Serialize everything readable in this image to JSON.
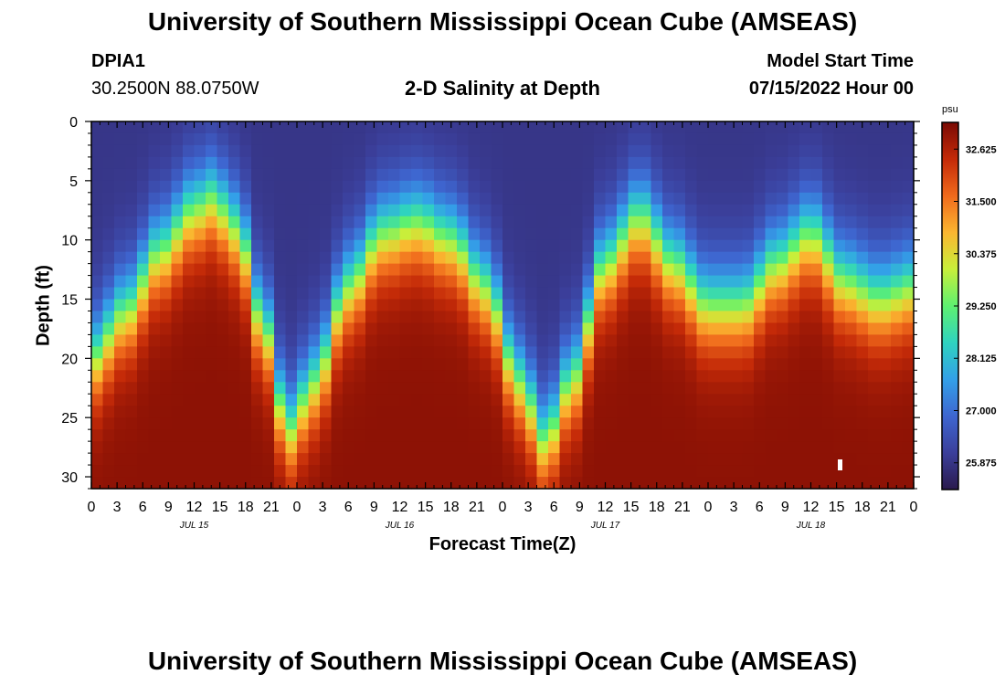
{
  "page": {
    "title": "University of Southern Mississippi Ocean Cube (AMSEAS)",
    "title_repeat": "University of Southern Mississippi Ocean Cube (AMSEAS)",
    "station": "DPIA1",
    "coords": "30.2500N  88.0750W",
    "subtitle": "2-D Salinity at Depth",
    "model_start_label": "Model Start Time",
    "model_start_value": "07/15/2022 Hour 00"
  },
  "colors": {
    "scale": [
      "#2a1a4d",
      "#3b3f9b",
      "#3e66d0",
      "#33a0e8",
      "#2fd3c0",
      "#5ef070",
      "#c8ef3a",
      "#fbb630",
      "#f06a1c",
      "#c42a08",
      "#7a0a04"
    ]
  },
  "chart_data": {
    "type": "heatmap",
    "title": "2-D Salinity at Depth",
    "xlabel": "Forecast Time(Z)",
    "ylabel": "Depth (ft)",
    "x_range_hours": [
      0,
      96
    ],
    "y_range_ft": [
      0,
      31
    ],
    "xticks": [
      "0",
      "3",
      "6",
      "9",
      "12",
      "15",
      "18",
      "21",
      "0",
      "3",
      "6",
      "9",
      "12",
      "15",
      "18",
      "21",
      "0",
      "3",
      "6",
      "9",
      "12",
      "15",
      "18",
      "21",
      "0",
      "3",
      "6",
      "9",
      "12",
      "15",
      "18",
      "21",
      "0"
    ],
    "yticks": [
      0,
      5,
      10,
      15,
      20,
      25,
      30
    ],
    "day_labels": [
      {
        "label": "JUL 15",
        "hour": 12
      },
      {
        "label": "JUL 16",
        "hour": 36
      },
      {
        "label": "JUL 17",
        "hour": 60
      },
      {
        "label": "JUL 18",
        "hour": 84
      }
    ],
    "colorbar": {
      "unit": "psu",
      "min": 25.3,
      "max": 33.2,
      "ticks": [
        "32.625",
        "31.500",
        "30.375",
        "29.250",
        "28.125",
        "27.000",
        "25.875"
      ],
      "tick_values": [
        32.625,
        31.5,
        30.375,
        29.25,
        28.125,
        27.0,
        25.875
      ]
    },
    "field": {
      "description": "salinity (psu) vs forecast hour and depth; fresh surface layer with halocline depth oscillating",
      "halocline_depth_ft": {
        "hours": [
          0,
          4,
          8,
          12,
          14,
          17,
          20,
          23,
          26,
          30,
          34,
          38,
          42,
          46,
          50,
          53,
          56,
          60,
          64,
          68,
          72,
          76,
          80,
          84,
          88,
          92,
          96
        ],
        "values": [
          20,
          16,
          11,
          7.5,
          6.5,
          9,
          17,
          26,
          22,
          14,
          9.5,
          8.5,
          10,
          14,
          22,
          27,
          22,
          12,
          8,
          12,
          15.5,
          15.5,
          12,
          9.5,
          13.5,
          15,
          14
        ]
      },
      "surface_psu": 25.9,
      "deep_psu": 33.0
    }
  }
}
